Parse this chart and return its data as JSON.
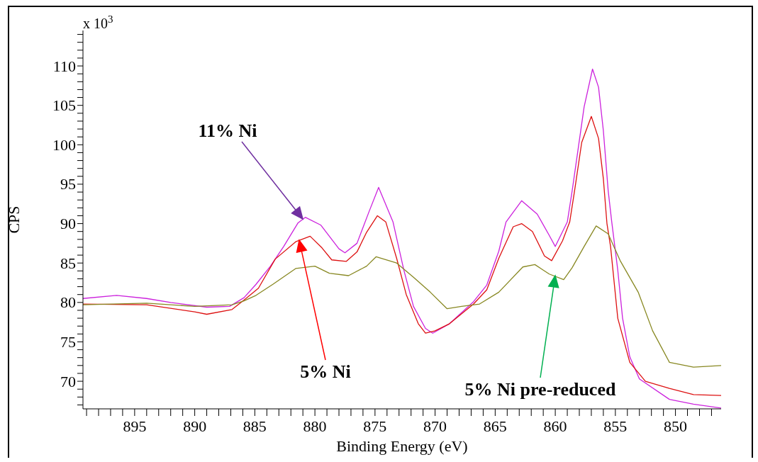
{
  "chart_data": {
    "type": "line",
    "xlabel": "Binding Energy (eV)",
    "ylabel": "CPS",
    "xlim": [
      899.3,
      846.2
    ],
    "ylim": [
      66.5,
      114.5
    ],
    "xticks": [
      {
        "value": 899,
        "label": null
      },
      {
        "value": 898,
        "label": null
      },
      {
        "value": 897,
        "label": null
      },
      {
        "value": 896,
        "label": null
      },
      895,
      {
        "value": 894,
        "label": null
      },
      {
        "value": 893,
        "label": null
      },
      {
        "value": 892,
        "label": null
      },
      {
        "value": 891,
        "label": null
      },
      890,
      {
        "value": 889,
        "label": null
      },
      {
        "value": 888,
        "label": null
      },
      {
        "value": 887,
        "label": null
      },
      {
        "value": 886,
        "label": null
      },
      885,
      {
        "value": 884,
        "label": null
      },
      {
        "value": 883,
        "label": null
      },
      {
        "value": 882,
        "label": null
      },
      {
        "value": 881,
        "label": null
      },
      880,
      {
        "value": 879,
        "label": null
      },
      {
        "value": 878,
        "label": null
      },
      {
        "value": 877,
        "label": null
      },
      {
        "value": 876,
        "label": null
      },
      875,
      {
        "value": 874,
        "label": null
      },
      {
        "value": 873,
        "label": null
      },
      {
        "value": 872,
        "label": null
      },
      {
        "value": 871,
        "label": null
      },
      870,
      {
        "value": 869,
        "label": null
      },
      {
        "value": 868,
        "label": null
      },
      {
        "value": 867,
        "label": null
      },
      {
        "value": 866,
        "label": null
      },
      865,
      {
        "value": 864,
        "label": null
      },
      {
        "value": 863,
        "label": null
      },
      {
        "value": 862,
        "label": null
      },
      {
        "value": 861,
        "label": null
      },
      860,
      {
        "value": 859,
        "label": null
      },
      {
        "value": 858,
        "label": null
      },
      {
        "value": 857,
        "label": null
      },
      {
        "value": 856,
        "label": null
      },
      855,
      {
        "value": 854,
        "label": null
      },
      {
        "value": 853,
        "label": null
      },
      {
        "value": 852,
        "label": null
      },
      {
        "value": 851,
        "label": null
      },
      850,
      {
        "value": 849,
        "label": null
      },
      {
        "value": 848,
        "label": null
      },
      {
        "value": 847,
        "label": null
      }
    ],
    "yticks": [
      {
        "value": 67,
        "label": null
      },
      {
        "value": 68,
        "label": null
      },
      {
        "value": 69,
        "label": null
      },
      70,
      {
        "value": 71,
        "label": null
      },
      {
        "value": 72,
        "label": null
      },
      {
        "value": 73,
        "label": null
      },
      {
        "value": 74,
        "label": null
      },
      75,
      {
        "value": 76,
        "label": null
      },
      {
        "value": 77,
        "label": null
      },
      {
        "value": 78,
        "label": null
      },
      {
        "value": 79,
        "label": null
      },
      80,
      {
        "value": 81,
        "label": null
      },
      {
        "value": 82,
        "label": null
      },
      {
        "value": 83,
        "label": null
      },
      {
        "value": 84,
        "label": null
      },
      85,
      {
        "value": 86,
        "label": null
      },
      {
        "value": 87,
        "label": null
      },
      {
        "value": 88,
        "label": null
      },
      {
        "value": 89,
        "label": null
      },
      90,
      {
        "value": 91,
        "label": null
      },
      {
        "value": 92,
        "label": null
      },
      {
        "value": 93,
        "label": null
      },
      {
        "value": 94,
        "label": null
      },
      95,
      {
        "value": 96,
        "label": null
      },
      {
        "value": 97,
        "label": null
      },
      {
        "value": 98,
        "label": null
      },
      {
        "value": 99,
        "label": null
      },
      100,
      {
        "value": 101,
        "label": null
      },
      {
        "value": 102,
        "label": null
      },
      {
        "value": 103,
        "label": null
      },
      {
        "value": 104,
        "label": null
      },
      105,
      {
        "value": 106,
        "label": null
      },
      {
        "value": 107,
        "label": null
      },
      {
        "value": 108,
        "label": null
      },
      {
        "value": 109,
        "label": null
      },
      110,
      {
        "value": 111,
        "label": null
      },
      {
        "value": 112,
        "label": null
      },
      {
        "value": 113,
        "label": null
      },
      {
        "value": 114,
        "label": null
      }
    ],
    "marker": "none",
    "line_style": "solid",
    "series": [
      {
        "color": "#cc22dd",
        "x": [
          899.3,
          896.5,
          894,
          892,
          889,
          887.1,
          885.9,
          884.9,
          883.7,
          882.6,
          881.4,
          880.8,
          879.5,
          878,
          877.5,
          876.5,
          875.5,
          874.7,
          873.5,
          872.6,
          871.8,
          870.8,
          870.2,
          868.8,
          866.8,
          865.7,
          864.7,
          864.1,
          862.8,
          861.5,
          860.5,
          860,
          859,
          858.6,
          857.6,
          856.9,
          856.4,
          856,
          855.6,
          855.3,
          854.8,
          854.4,
          853.8,
          853,
          850.5,
          848.5,
          846.2
        ],
        "values": [
          80.5,
          80.9,
          80.5,
          80,
          79.4,
          79.5,
          80.6,
          82.3,
          84.6,
          87.1,
          90.1,
          90.8,
          89.8,
          86.8,
          86.3,
          87.5,
          91.5,
          94.6,
          90.2,
          84.1,
          79.5,
          76.7,
          76.1,
          77.3,
          80.1,
          82.2,
          86.5,
          90.2,
          92.9,
          91.2,
          88.5,
          87.1,
          90.2,
          94.1,
          104.8,
          109.6,
          107.3,
          101.8,
          94.2,
          90.2,
          84.1,
          78,
          73.1,
          70.3,
          67.7,
          67.1,
          66.6
        ]
      },
      {
        "color": "#dd1111",
        "x": [
          899.3,
          894,
          890,
          889,
          886.9,
          885.9,
          884.7,
          883.3,
          881.6,
          880.4,
          879.4,
          878.6,
          877.4,
          876.5,
          875.7,
          874.8,
          874.1,
          873.2,
          872.4,
          871.4,
          870.8,
          870,
          868.8,
          866.8,
          865.7,
          864.7,
          863.5,
          862.8,
          861.9,
          860.9,
          860.3,
          859.4,
          858.8,
          858.4,
          857.8,
          857,
          856.4,
          856,
          855.7,
          855.4,
          854.8,
          853.8,
          852.5,
          850.5,
          848.5,
          846.2
        ],
        "values": [
          79.8,
          79.7,
          78.8,
          78.5,
          79.1,
          80.3,
          81.8,
          85.5,
          87.7,
          88.4,
          86.9,
          85.4,
          85.2,
          86.4,
          88.9,
          91,
          90.2,
          85.6,
          81,
          77.3,
          76.1,
          76.4,
          77.3,
          79.8,
          81.6,
          85.6,
          89.6,
          90,
          89,
          85.9,
          85.3,
          87.8,
          90.2,
          94.1,
          100.3,
          103.6,
          100.8,
          95.7,
          90,
          87.1,
          78,
          72.4,
          70,
          69.1,
          68.3,
          68.2
        ]
      },
      {
        "color": "#888822",
        "x": [
          899.3,
          894,
          890,
          886.9,
          885.9,
          884.9,
          883.5,
          881.6,
          880,
          878.8,
          877.2,
          875.7,
          874.9,
          873.2,
          871.8,
          870.4,
          869,
          867.8,
          866.3,
          864.7,
          862.7,
          861.7,
          860.5,
          859.3,
          858.6,
          857.6,
          856.6,
          855.6,
          854.6,
          853.1,
          851.9,
          850.5,
          848.5,
          846.2
        ],
        "values": [
          79.7,
          79.9,
          79.5,
          79.7,
          80.2,
          80.9,
          82.3,
          84.3,
          84.6,
          83.7,
          83.4,
          84.6,
          85.8,
          85,
          83.2,
          81.3,
          79.2,
          79.5,
          79.8,
          81.3,
          84.5,
          84.8,
          83.6,
          82.9,
          84.4,
          87.1,
          89.7,
          88.7,
          85.3,
          81.3,
          76.4,
          72.4,
          71.8,
          72
        ]
      }
    ],
    "annotations": [
      "x 10$^{3}$",
      "11% Ni",
      "5% Ni",
      "5% Ni pre-reduced"
    ]
  }
}
